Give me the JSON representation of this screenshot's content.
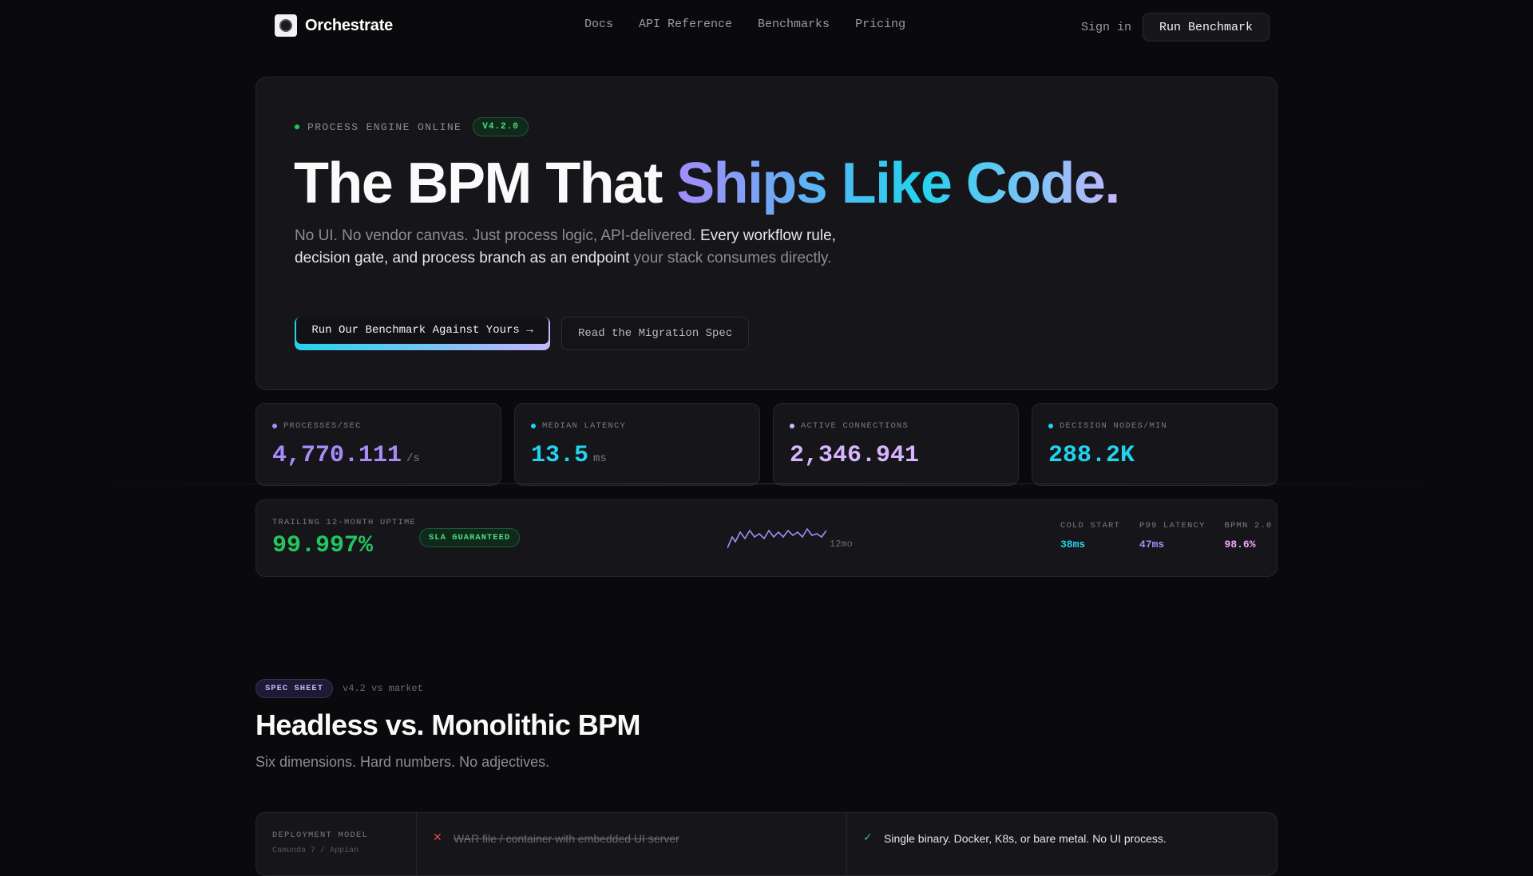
{
  "nav": {
    "brand": "Orchestrate",
    "links": [
      "Docs",
      "API Reference",
      "Benchmarks",
      "Pricing"
    ],
    "sign_in": "Sign in",
    "cta": "Run Benchmark"
  },
  "hero": {
    "status": "PROCESS ENGINE ONLINE",
    "version": "V4.2.0",
    "headline_plain": "The BPM That ",
    "headline_gradient": "Ships Like Code.",
    "sub_1": "No UI. No vendor canvas. Just process logic, API-delivered. ",
    "sub_strong": "Every workflow rule, decision gate, and process branch as an endpoint",
    "sub_2": " your stack consumes directly.",
    "cta_primary": "Run Our Benchmark Against Yours →",
    "cta_secondary": "Read the Migration Spec"
  },
  "stats": [
    {
      "label": "PROCESSES/SEC",
      "value": "4,770.111",
      "unit": "/s",
      "color": "#a78bfa"
    },
    {
      "label": "MEDIAN LATENCY",
      "value": "13.5",
      "unit": "ms",
      "color": "#22d3ee"
    },
    {
      "label": "ACTIVE CONNECTIONS",
      "value": "2,346.941",
      "unit": "",
      "color": "#d8b4fe"
    },
    {
      "label": "DECISION NODES/MIN",
      "value": "288.2K",
      "unit": "",
      "color": "#22d3ee"
    }
  ],
  "uptime": {
    "label": "TRAILING 12-MONTH UPTIME",
    "value": "99.997%",
    "badge": "SLA GUARANTEED",
    "spark_label": "12mo",
    "metrics": [
      {
        "label": "COLD START",
        "value": "38ms",
        "color": "#22d3ee"
      },
      {
        "label": "P99 LATENCY",
        "value": "47ms",
        "color": "#a78bfa"
      },
      {
        "label": "BPMN 2.0",
        "value": "98.6%",
        "color": "#f0abfc"
      }
    ]
  },
  "spec": {
    "badge": "SPEC SHEET",
    "meta": "v4.2 vs market",
    "title": "Headless vs. Monolithic BPM",
    "subtitle": "Six dimensions. Hard numbers. No adjectives.",
    "rows": [
      {
        "label": "DEPLOYMENT MODEL",
        "sub": "Camunda 7 / Appian",
        "old": "WAR file / container with embedded UI server",
        "new": "Single binary. Docker, K8s, or bare metal. No UI process."
      }
    ]
  }
}
